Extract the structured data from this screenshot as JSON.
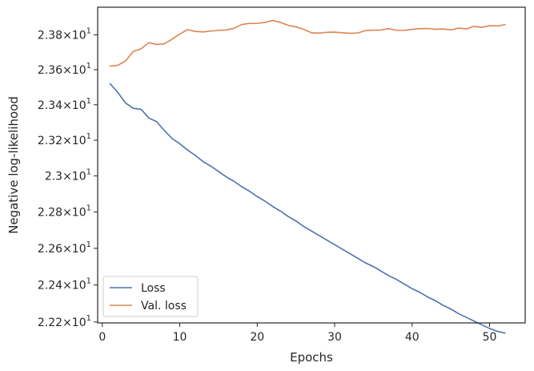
{
  "chart_data": {
    "type": "line",
    "title": "",
    "xlabel": "Epochs",
    "ylabel": "Negative log-likelihood",
    "xlim": [
      -0.6,
      54.6
    ],
    "ylim": [
      22.195,
      23.96
    ],
    "y_scale": "log",
    "grid": false,
    "legend_position": "lower-left",
    "x_ticks": [
      {
        "value": 0,
        "label": "0"
      },
      {
        "value": 10,
        "label": "10"
      },
      {
        "value": 20,
        "label": "20"
      },
      {
        "value": 30,
        "label": "30"
      },
      {
        "value": 40,
        "label": "40"
      },
      {
        "value": 50,
        "label": "50"
      }
    ],
    "y_ticks": [
      {
        "value": 22.2,
        "mantissa": "2.22",
        "base": "10",
        "exp": "1"
      },
      {
        "value": 22.4,
        "mantissa": "2.24",
        "base": "10",
        "exp": "1"
      },
      {
        "value": 22.6,
        "mantissa": "2.26",
        "base": "10",
        "exp": "1"
      },
      {
        "value": 22.8,
        "mantissa": "2.28",
        "base": "10",
        "exp": "1"
      },
      {
        "value": 23.0,
        "mantissa": "2.3",
        "base": "10",
        "exp": "1"
      },
      {
        "value": 23.2,
        "mantissa": "2.32",
        "base": "10",
        "exp": "1"
      },
      {
        "value": 23.4,
        "mantissa": "2.34",
        "base": "10",
        "exp": "1"
      },
      {
        "value": 23.6,
        "mantissa": "2.36",
        "base": "10",
        "exp": "1"
      },
      {
        "value": 23.8,
        "mantissa": "2.38",
        "base": "10",
        "exp": "1"
      }
    ],
    "series": [
      {
        "name": "Loss",
        "color": "#4c72b0",
        "x": [
          1,
          2,
          3,
          4,
          5,
          6,
          7,
          8,
          9,
          10,
          11,
          12,
          13,
          14,
          15,
          16,
          17,
          18,
          19,
          20,
          21,
          22,
          23,
          24,
          25,
          26,
          27,
          28,
          29,
          30,
          31,
          32,
          33,
          34,
          35,
          36,
          37,
          38,
          39,
          40,
          41,
          42,
          43,
          44,
          45,
          46,
          47,
          48,
          49,
          50,
          51,
          52
        ],
        "y": [
          23.52,
          23.47,
          23.41,
          23.38,
          23.375,
          23.325,
          23.305,
          23.255,
          23.21,
          23.18,
          23.145,
          23.115,
          23.08,
          23.055,
          23.025,
          22.995,
          22.97,
          22.94,
          22.915,
          22.885,
          22.86,
          22.83,
          22.805,
          22.775,
          22.75,
          22.72,
          22.695,
          22.67,
          22.645,
          22.62,
          22.595,
          22.57,
          22.545,
          22.52,
          22.5,
          22.475,
          22.45,
          22.43,
          22.405,
          22.38,
          22.36,
          22.335,
          22.315,
          22.29,
          22.27,
          22.245,
          22.225,
          22.205,
          22.185,
          22.165,
          22.15,
          22.14
        ]
      },
      {
        "name": "Val. loss",
        "color": "#dd8452",
        "x": [
          1,
          2,
          3,
          4,
          5,
          6,
          7,
          8,
          9,
          10,
          11,
          12,
          13,
          14,
          15,
          16,
          17,
          18,
          19,
          20,
          21,
          22,
          23,
          24,
          25,
          26,
          27,
          28,
          29,
          30,
          31,
          32,
          33,
          34,
          35,
          36,
          37,
          38,
          39,
          40,
          41,
          42,
          43,
          44,
          45,
          46,
          47,
          48,
          49,
          50,
          51,
          52
        ],
        "y": [
          23.62,
          23.625,
          23.65,
          23.705,
          23.72,
          23.755,
          23.745,
          23.748,
          23.775,
          23.805,
          23.83,
          23.82,
          23.817,
          23.822,
          23.826,
          23.828,
          23.838,
          23.86,
          23.866,
          23.866,
          23.872,
          23.883,
          23.872,
          23.855,
          23.846,
          23.832,
          23.812,
          23.81,
          23.815,
          23.816,
          23.812,
          23.809,
          23.811,
          23.825,
          23.827,
          23.828,
          23.836,
          23.826,
          23.826,
          23.832,
          23.836,
          23.837,
          23.832,
          23.834,
          23.829,
          23.839,
          23.834,
          23.849,
          23.843,
          23.853,
          23.851,
          23.859
        ]
      }
    ]
  }
}
